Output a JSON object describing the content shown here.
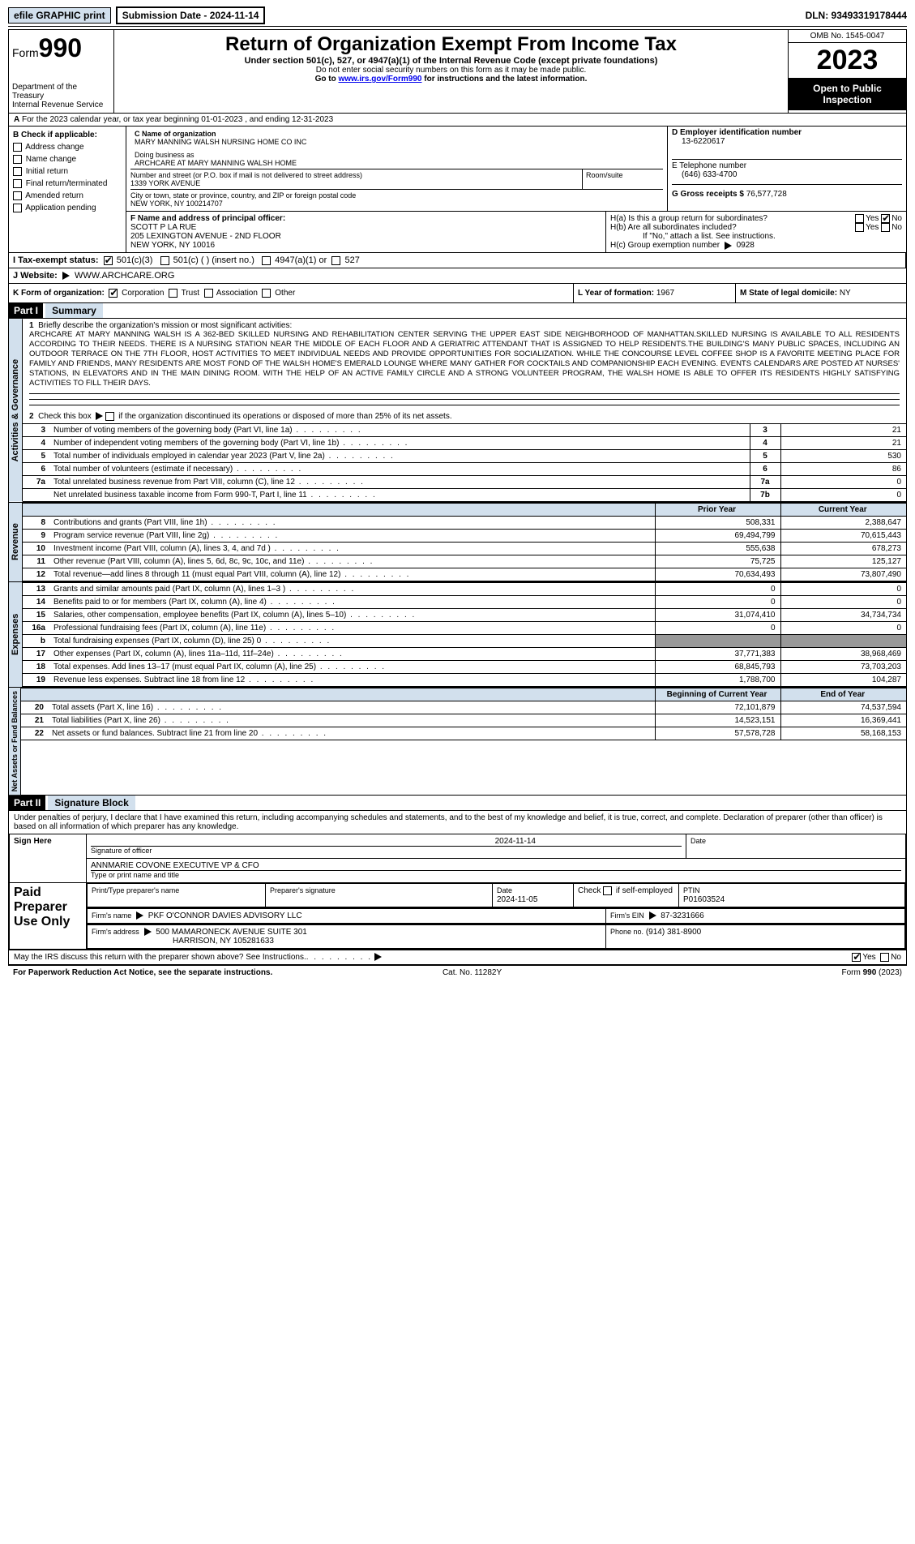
{
  "topbar": {
    "efile": "efile GRAPHIC print",
    "submission": "Submission Date - 2024-11-14",
    "dln": "DLN: 93493319178444"
  },
  "header": {
    "form_prefix": "Form",
    "form_num": "990",
    "dept": "Department of the Treasury",
    "irs": "Internal Revenue Service",
    "title": "Return of Organization Exempt From Income Tax",
    "sub": "Under section 501(c), 527, or 4947(a)(1) of the Internal Revenue Code (except private foundations)",
    "sub2": "Do not enter social security numbers on this form as it may be made public.",
    "sub3a": "Go to ",
    "sub3link": "www.irs.gov/Form990",
    "sub3b": " for instructions and the latest information.",
    "omb": "OMB No. 1545-0047",
    "year": "2023",
    "inspection": "Open to Public Inspection"
  },
  "rowA": {
    "label_a": "A",
    "text": "For the 2023 calendar year, or tax year beginning 01-01-2023",
    "ending": ", and ending 12-31-2023"
  },
  "sectionB": {
    "label": "B Check if applicable:",
    "items": [
      "Address change",
      "Name change",
      "Initial return",
      "Final return/terminated",
      "Amended return",
      "Application pending"
    ]
  },
  "sectionC": {
    "label": "C Name of organization",
    "name": "MARY MANNING WALSH NURSING HOME CO INC",
    "dba_label": "Doing business as",
    "dba": "ARCHCARE AT MARY MANNING WALSH HOME",
    "addr_label": "Number and street (or P.O. box if mail is not delivered to street address)",
    "addr": "1339 YORK AVENUE",
    "room_label": "Room/suite",
    "city_label": "City or town, state or province, country, and ZIP or foreign postal code",
    "city": "NEW YORK, NY  100214707"
  },
  "sectionD": {
    "label": "D Employer identification number",
    "value": "13-6220617"
  },
  "sectionE": {
    "label": "E Telephone number",
    "value": "(646) 633-4700"
  },
  "sectionG": {
    "label": "G Gross receipts $",
    "value": "76,577,728"
  },
  "sectionF": {
    "label": "F  Name and address of principal officer:",
    "name": "SCOTT P LA RUE",
    "addr1": "205 LEXINGTON AVENUE - 2ND FLOOR",
    "addr2": "NEW YORK, NY  10016"
  },
  "sectionH": {
    "a": "H(a)  Is this a group return for subordinates?",
    "b": "H(b)  Are all subordinates included?",
    "bnote": "If \"No,\" attach a list. See instructions.",
    "c": "H(c)  Group exemption number",
    "c_val": "0928",
    "yes": "Yes",
    "no": "No"
  },
  "sectionI": {
    "label": "I  Tax-exempt status:",
    "o1": "501(c)(3)",
    "o2": "501(c) (  ) (insert no.)",
    "o3": "4947(a)(1) or",
    "o4": "527"
  },
  "sectionJ": {
    "label": "J   Website:",
    "value": "WWW.ARCHCARE.ORG"
  },
  "sectionK": {
    "label": "K Form of organization:",
    "o1": "Corporation",
    "o2": "Trust",
    "o3": "Association",
    "o4": "Other"
  },
  "sectionL": {
    "label": "L Year of formation:",
    "value": "1967"
  },
  "sectionM": {
    "label": "M State of legal domicile:",
    "value": "NY"
  },
  "part1": {
    "part": "Part I",
    "title": "Summary",
    "vlabel_ag": "Activities & Governance",
    "vlabel_rev": "Revenue",
    "vlabel_exp": "Expenses",
    "vlabel_nab": "Net Assets or Fund Balances",
    "q1": "Briefly describe the organization's mission or most significant activities:",
    "mission": "ARCHCARE AT MARY MANNING WALSH IS A 362-BED SKILLED NURSING AND REHABILITATION CENTER SERVING THE UPPER EAST SIDE NEIGHBORHOOD OF MANHATTAN.SKILLED NURSING IS AVAILABLE TO ALL RESIDENTS ACCORDING TO THEIR NEEDS. THERE IS A NURSING STATION NEAR THE MIDDLE OF EACH FLOOR AND A GERIATRIC ATTENDANT THAT IS ASSIGNED TO HELP RESIDENTS.THE BUILDING'S MANY PUBLIC SPACES, INCLUDING AN OUTDOOR TERRACE ON THE 7TH FLOOR, HOST ACTIVITIES TO MEET INDIVIDUAL NEEDS AND PROVIDE OPPORTUNITIES FOR SOCIALIZATION. WHILE THE CONCOURSE LEVEL COFFEE SHOP IS A FAVORITE MEETING PLACE FOR FAMILY AND FRIENDS, MANY RESIDENTS ARE MOST FOND OF THE WALSH HOME'S EMERALD LOUNGE WHERE MANY GATHER FOR COCKTAILS AND COMPANIONSHIP EACH EVENING. EVENTS CALENDARS ARE POSTED AT NURSES' STATIONS, IN ELEVATORS AND IN THE MAIN DINING ROOM. WITH THE HELP OF AN ACTIVE FAMILY CIRCLE AND A STRONG VOLUNTEER PROGRAM, THE WALSH HOME IS ABLE TO OFFER ITS RESIDENTS HIGHLY SATISFYING ACTIVITIES TO FILL THEIR DAYS.",
    "q2": "Check this box      if the organization discontinued its operations or disposed of more than 25% of its net assets.",
    "lines_ag": [
      {
        "n": "3",
        "label": "Number of voting members of the governing body (Part VI, line 1a)",
        "box": "3",
        "val": "21"
      },
      {
        "n": "4",
        "label": "Number of independent voting members of the governing body (Part VI, line 1b)",
        "box": "4",
        "val": "21"
      },
      {
        "n": "5",
        "label": "Total number of individuals employed in calendar year 2023 (Part V, line 2a)",
        "box": "5",
        "val": "530"
      },
      {
        "n": "6",
        "label": "Total number of volunteers (estimate if necessary)",
        "box": "6",
        "val": "86"
      },
      {
        "n": "7a",
        "label": "Total unrelated business revenue from Part VIII, column (C), line 12",
        "box": "7a",
        "val": "0"
      },
      {
        "n": "",
        "label": "Net unrelated business taxable income from Form 990-T, Part I, line 11",
        "box": "7b",
        "val": "0"
      }
    ],
    "hdr_prior": "Prior Year",
    "hdr_current": "Current Year",
    "lines_rev": [
      {
        "n": "8",
        "label": "Contributions and grants (Part VIII, line 1h)",
        "p": "508,331",
        "c": "2,388,647"
      },
      {
        "n": "9",
        "label": "Program service revenue (Part VIII, line 2g)",
        "p": "69,494,799",
        "c": "70,615,443"
      },
      {
        "n": "10",
        "label": "Investment income (Part VIII, column (A), lines 3, 4, and 7d )",
        "p": "555,638",
        "c": "678,273"
      },
      {
        "n": "11",
        "label": "Other revenue (Part VIII, column (A), lines 5, 6d, 8c, 9c, 10c, and 11e)",
        "p": "75,725",
        "c": "125,127"
      },
      {
        "n": "12",
        "label": "Total revenue—add lines 8 through 11 (must equal Part VIII, column (A), line 12)",
        "p": "70,634,493",
        "c": "73,807,490"
      }
    ],
    "lines_exp": [
      {
        "n": "13",
        "label": "Grants and similar amounts paid (Part IX, column (A), lines 1–3 )",
        "p": "0",
        "c": "0"
      },
      {
        "n": "14",
        "label": "Benefits paid to or for members (Part IX, column (A), line 4)",
        "p": "0",
        "c": "0"
      },
      {
        "n": "15",
        "label": "Salaries, other compensation, employee benefits (Part IX, column (A), lines 5–10)",
        "p": "31,074,410",
        "c": "34,734,734"
      },
      {
        "n": "16a",
        "label": "Professional fundraising fees (Part IX, column (A), line 11e)",
        "p": "0",
        "c": "0"
      },
      {
        "n": "b",
        "label": "Total fundraising expenses (Part IX, column (D), line 25) 0",
        "p": "GREY",
        "c": "GREY"
      },
      {
        "n": "17",
        "label": "Other expenses (Part IX, column (A), lines 11a–11d, 11f–24e)",
        "p": "37,771,383",
        "c": "38,968,469"
      },
      {
        "n": "18",
        "label": "Total expenses. Add lines 13–17 (must equal Part IX, column (A), line 25)",
        "p": "68,845,793",
        "c": "73,703,203"
      },
      {
        "n": "19",
        "label": "Revenue less expenses. Subtract line 18 from line 12",
        "p": "1,788,700",
        "c": "104,287"
      }
    ],
    "hdr_boy": "Beginning of Current Year",
    "hdr_eoy": "End of Year",
    "lines_nab": [
      {
        "n": "20",
        "label": "Total assets (Part X, line 16)",
        "p": "72,101,879",
        "c": "74,537,594"
      },
      {
        "n": "21",
        "label": "Total liabilities (Part X, line 26)",
        "p": "14,523,151",
        "c": "16,369,441"
      },
      {
        "n": "22",
        "label": "Net assets or fund balances. Subtract line 21 from line 20",
        "p": "57,578,728",
        "c": "58,168,153"
      }
    ]
  },
  "part2": {
    "part": "Part II",
    "title": "Signature Block",
    "disclaimer": "Under penalties of perjury, I declare that I have examined this return, including accompanying schedules and statements, and to the best of my knowledge and belief, it is true, correct, and complete. Declaration of preparer (other than officer) is based on all information of which preparer has any knowledge.",
    "sign_here": "Sign Here",
    "sig_date": "2024-11-14",
    "sig_label1": "Signature of officer",
    "sig_label2": "Date",
    "officer": "ANNMARIE COVONE EXECUTIVE VP & CFO",
    "officer_label": "Type or print name and title",
    "paid": "Paid Preparer Use Only",
    "pp_name_label": "Print/Type preparer's name",
    "pp_sig_label": "Preparer's signature",
    "pp_date_label": "Date",
    "pp_date": "2024-11-05",
    "pp_check": "Check       if self-employed",
    "ptin_label": "PTIN",
    "ptin": "P01603524",
    "firm_name_label": "Firm's name",
    "firm_name": "PKF O'CONNOR DAVIES ADVISORY LLC",
    "firm_ein_label": "Firm's EIN",
    "firm_ein": "87-3231666",
    "firm_addr_label": "Firm's address",
    "firm_addr1": "500 MAMARONECK AVENUE SUITE 301",
    "firm_addr2": "HARRISON, NY  105281633",
    "phone_label": "Phone no.",
    "phone": "(914) 381-8900",
    "discuss": "May the IRS discuss this return with the preparer shown above? See Instructions.",
    "yes": "Yes",
    "no": "No"
  },
  "footer": {
    "left": "For Paperwork Reduction Act Notice, see the separate instructions.",
    "mid": "Cat. No. 11282Y",
    "right": "Form 990 (2023)"
  }
}
